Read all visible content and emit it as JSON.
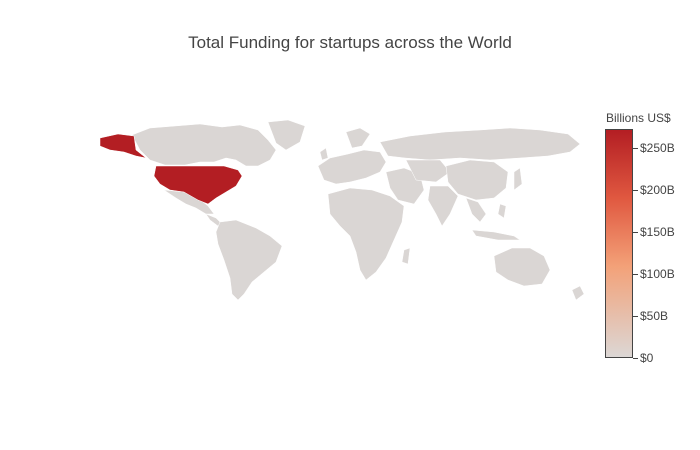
{
  "title": "Total Funding for startups across the World",
  "colorbar": {
    "title": "Billions US$",
    "ticks": [
      {
        "label": "$250B",
        "value": 250
      },
      {
        "label": "$200B",
        "value": 200
      },
      {
        "label": "$150B",
        "value": 150
      },
      {
        "label": "$100B",
        "value": 100
      },
      {
        "label": "$50B",
        "value": 50
      },
      {
        "label": "$0",
        "value": 0
      }
    ],
    "max": 272,
    "colors": [
      "#dcd7d5",
      "#f3a178",
      "#e05840",
      "#b31e23"
    ]
  },
  "chart_data": {
    "type": "choropleth",
    "locations": [
      {
        "country": "United States",
        "value": 270
      },
      {
        "country": "Other countries",
        "value": 0
      }
    ]
  }
}
